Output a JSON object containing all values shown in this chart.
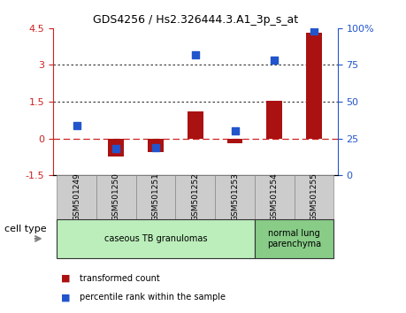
{
  "title": "GDS4256 / Hs2.326444.3.A1_3p_s_at",
  "samples": [
    "GSM501249",
    "GSM501250",
    "GSM501251",
    "GSM501252",
    "GSM501253",
    "GSM501254",
    "GSM501255"
  ],
  "transformed_count": [
    0.0,
    -0.75,
    -0.55,
    1.1,
    -0.2,
    1.55,
    4.3
  ],
  "percentile_rank": [
    34,
    18,
    19,
    82,
    30,
    78,
    98
  ],
  "ylim_left": [
    -1.5,
    4.5
  ],
  "ylim_right": [
    0,
    100
  ],
  "yticks_left": [
    -1.5,
    0.0,
    1.5,
    3.0,
    4.5
  ],
  "yticks_right": [
    0,
    25,
    50,
    75,
    100
  ],
  "ytick_labels_left": [
    "-1.5",
    "0",
    "1.5",
    "3",
    "4.5"
  ],
  "ytick_labels_right": [
    "0",
    "25",
    "50",
    "75",
    "100%"
  ],
  "hlines": [
    0.0,
    1.5,
    3.0
  ],
  "hline_styles": [
    "dashed",
    "dotted",
    "dotted"
  ],
  "hline_colors": [
    "#cc2222",
    "#444444",
    "#444444"
  ],
  "bar_color": "#aa1111",
  "dot_color": "#2255cc",
  "bar_width": 0.4,
  "dot_size": 40,
  "cell_type_groups": [
    {
      "label": "caseous TB granulomas",
      "samples": [
        0,
        1,
        2,
        3,
        4
      ],
      "color": "#bbeebb"
    },
    {
      "label": "normal lung\nparenchyma",
      "samples": [
        5,
        6
      ],
      "color": "#88cc88"
    }
  ],
  "cell_type_label": "cell type",
  "legend_items": [
    {
      "color": "#aa1111",
      "label": "transformed count"
    },
    {
      "color": "#2255cc",
      "label": "percentile rank within the sample"
    }
  ],
  "bg_color": "#ffffff",
  "plot_bg_color": "#ffffff",
  "tick_label_color_left": "#cc2222",
  "tick_label_color_right": "#2255cc",
  "xtick_bg": "#cccccc"
}
